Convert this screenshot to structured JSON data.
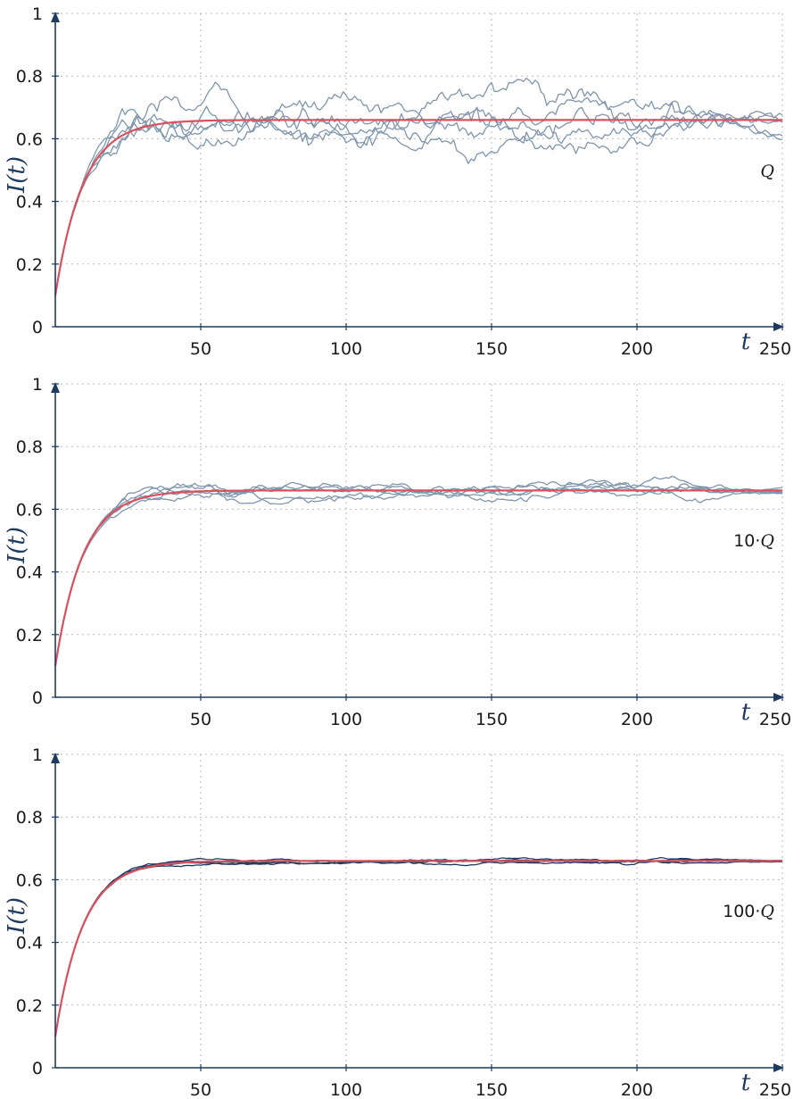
{
  "chart_data": [
    {
      "type": "line",
      "panel": 1,
      "annotation": {
        "prefix": "",
        "symbol": "Q"
      },
      "xlabel": "t",
      "ylabel": "I(t)",
      "xlim": [
        0,
        250
      ],
      "ylim": [
        0,
        1
      ],
      "xticks": [
        50,
        100,
        150,
        200,
        250
      ],
      "yticks": [
        0,
        0.2,
        0.4,
        0.6,
        0.8,
        1
      ],
      "xtick_labels": [
        "50",
        "100",
        "150",
        "200",
        "250"
      ],
      "ytick_labels": [
        "0",
        "0.2",
        "0.4",
        "0.6",
        "0.8",
        "1"
      ],
      "grid": true,
      "colors": {
        "simulation": "#7f96ad",
        "ode": "#d9505e"
      },
      "deterministic": {
        "start": 0.1,
        "plateau": 0.66,
        "tau": 9.5
      },
      "simulations": {
        "count": 5,
        "noise": 0.013,
        "start": 0.1,
        "end_values": [
          0.67,
          0.65,
          0.62,
          0.6,
          0.66
        ]
      }
    },
    {
      "type": "line",
      "panel": 2,
      "annotation": {
        "prefix": "10·",
        "symbol": "Q"
      },
      "xlabel": "t",
      "ylabel": "I(t)",
      "xlim": [
        0,
        250
      ],
      "ylim": [
        0,
        1
      ],
      "xticks": [
        50,
        100,
        150,
        200,
        250
      ],
      "yticks": [
        0,
        0.2,
        0.4,
        0.6,
        0.8,
        1
      ],
      "xtick_labels": [
        "50",
        "100",
        "150",
        "200",
        "250"
      ],
      "ytick_labels": [
        "0",
        "0.2",
        "0.4",
        "0.6",
        "0.8",
        "1"
      ],
      "grid": true,
      "colors": {
        "simulation": "#7f96ad",
        "ode": "#d9505e"
      },
      "deterministic": {
        "start": 0.1,
        "plateau": 0.66,
        "tau": 9.5
      },
      "simulations": {
        "count": 5,
        "noise": 0.0042,
        "start": 0.1,
        "end_values": [
          0.66,
          0.65,
          0.665,
          0.655,
          0.66
        ]
      }
    },
    {
      "type": "line",
      "panel": 3,
      "annotation": {
        "prefix": "100·",
        "symbol": "Q"
      },
      "xlabel": "t",
      "ylabel": "I(t)",
      "xlim": [
        0,
        250
      ],
      "ylim": [
        0,
        1
      ],
      "xticks": [
        50,
        100,
        150,
        200,
        250
      ],
      "yticks": [
        0,
        0.2,
        0.4,
        0.6,
        0.8,
        1
      ],
      "xtick_labels": [
        "50",
        "100",
        "150",
        "200",
        "250"
      ],
      "ytick_labels": [
        "0",
        "0.2",
        "0.4",
        "0.6",
        "0.8",
        "1"
      ],
      "grid": true,
      "colors": {
        "simulation": "#1f3a5f",
        "ode": "#d9505e"
      },
      "deterministic": {
        "start": 0.1,
        "plateau": 0.66,
        "tau": 9.5
      },
      "simulations": {
        "count": 5,
        "noise": 0.0013,
        "start": 0.1,
        "end_values": [
          0.66,
          0.658,
          0.662,
          0.659,
          0.66
        ]
      }
    }
  ]
}
